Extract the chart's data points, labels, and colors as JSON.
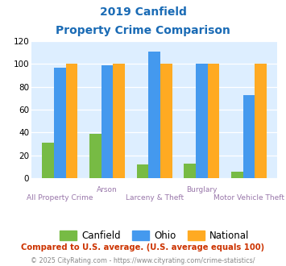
{
  "title_line1": "2019 Canfield",
  "title_line2": "Property Crime Comparison",
  "groups": [
    {
      "label_bottom": "All Property Crime",
      "label_top": "",
      "canfield": 31,
      "ohio": 97,
      "national": 100
    },
    {
      "label_bottom": "",
      "label_top": "Arson",
      "canfield": 39,
      "ohio": 99,
      "national": 100
    },
    {
      "label_bottom": "Larceny & Theft",
      "label_top": "",
      "canfield": 12,
      "ohio": 111,
      "national": 100
    },
    {
      "label_bottom": "",
      "label_top": "Burglary",
      "canfield": 13,
      "ohio": 100,
      "national": 100
    },
    {
      "label_bottom": "Motor Vehicle Theft",
      "label_top": "",
      "canfield": 6,
      "ohio": 73,
      "national": 100
    }
  ],
  "canfield_color": "#77bb44",
  "ohio_color": "#4499ee",
  "national_color": "#ffaa22",
  "background_color": "#ddeeff",
  "ylim": [
    0,
    120
  ],
  "yticks": [
    0,
    20,
    40,
    60,
    80,
    100,
    120
  ],
  "footnote1": "Compared to U.S. average. (U.S. average equals 100)",
  "footnote2": "© 2025 CityRating.com - https://www.cityrating.com/crime-statistics/",
  "title_color": "#1a6bb5",
  "xlabel_color": "#9977aa",
  "footnote1_color": "#cc3300",
  "footnote2_color": "#888888",
  "legend_labels": [
    "Canfield",
    "Ohio",
    "National"
  ]
}
